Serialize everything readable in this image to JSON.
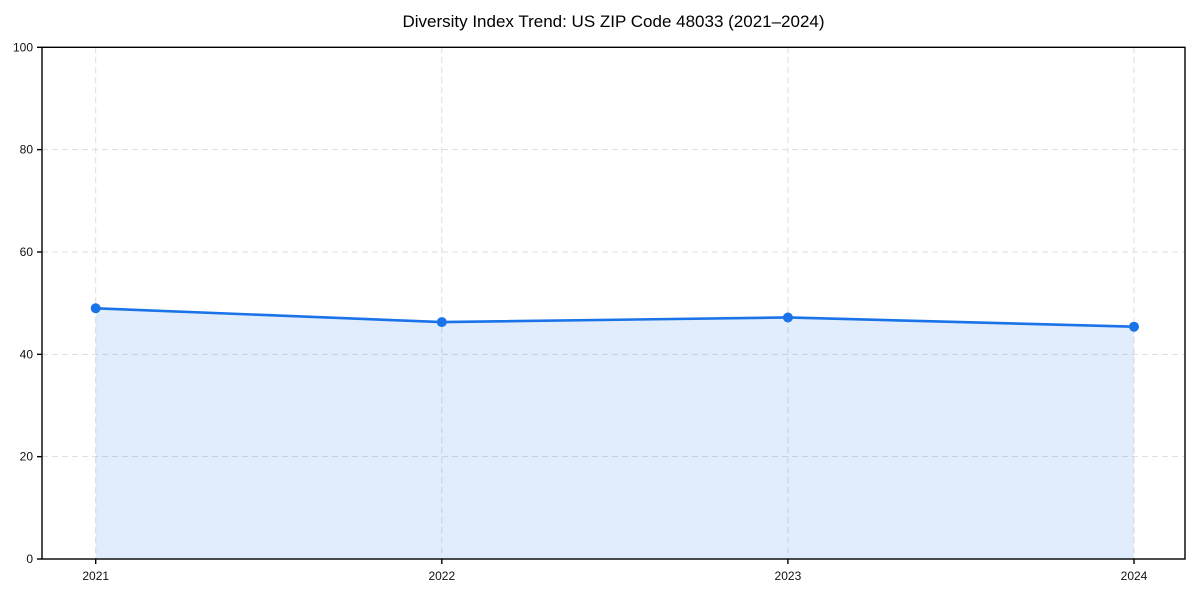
{
  "title": "Diversity Index Trend: US ZIP Code 48033 (2021–2024)",
  "chart_data": {
    "type": "area",
    "categories": [
      "2021",
      "2022",
      "2023",
      "2024"
    ],
    "series": [
      {
        "name": "Diversity Index",
        "values": [
          49.0,
          46.3,
          47.2,
          45.4
        ]
      }
    ],
    "title": "Diversity Index Trend: US ZIP Code 48033 (2021–2024)",
    "xlabel": "",
    "ylabel": "",
    "ylim": [
      0,
      100
    ],
    "yticks": [
      0,
      20,
      40,
      60,
      80,
      100
    ],
    "grid": true,
    "grid_style": "dashed",
    "legend": "none",
    "markers": true,
    "colors": {
      "line": "#1a73e8",
      "marker": "#1a73e8",
      "fill": "#1a73e8",
      "fill_opacity": 0.13,
      "grid": "#dddddd",
      "spine": "#000000",
      "tick_text": "#111111",
      "background": "#ffffff"
    }
  }
}
